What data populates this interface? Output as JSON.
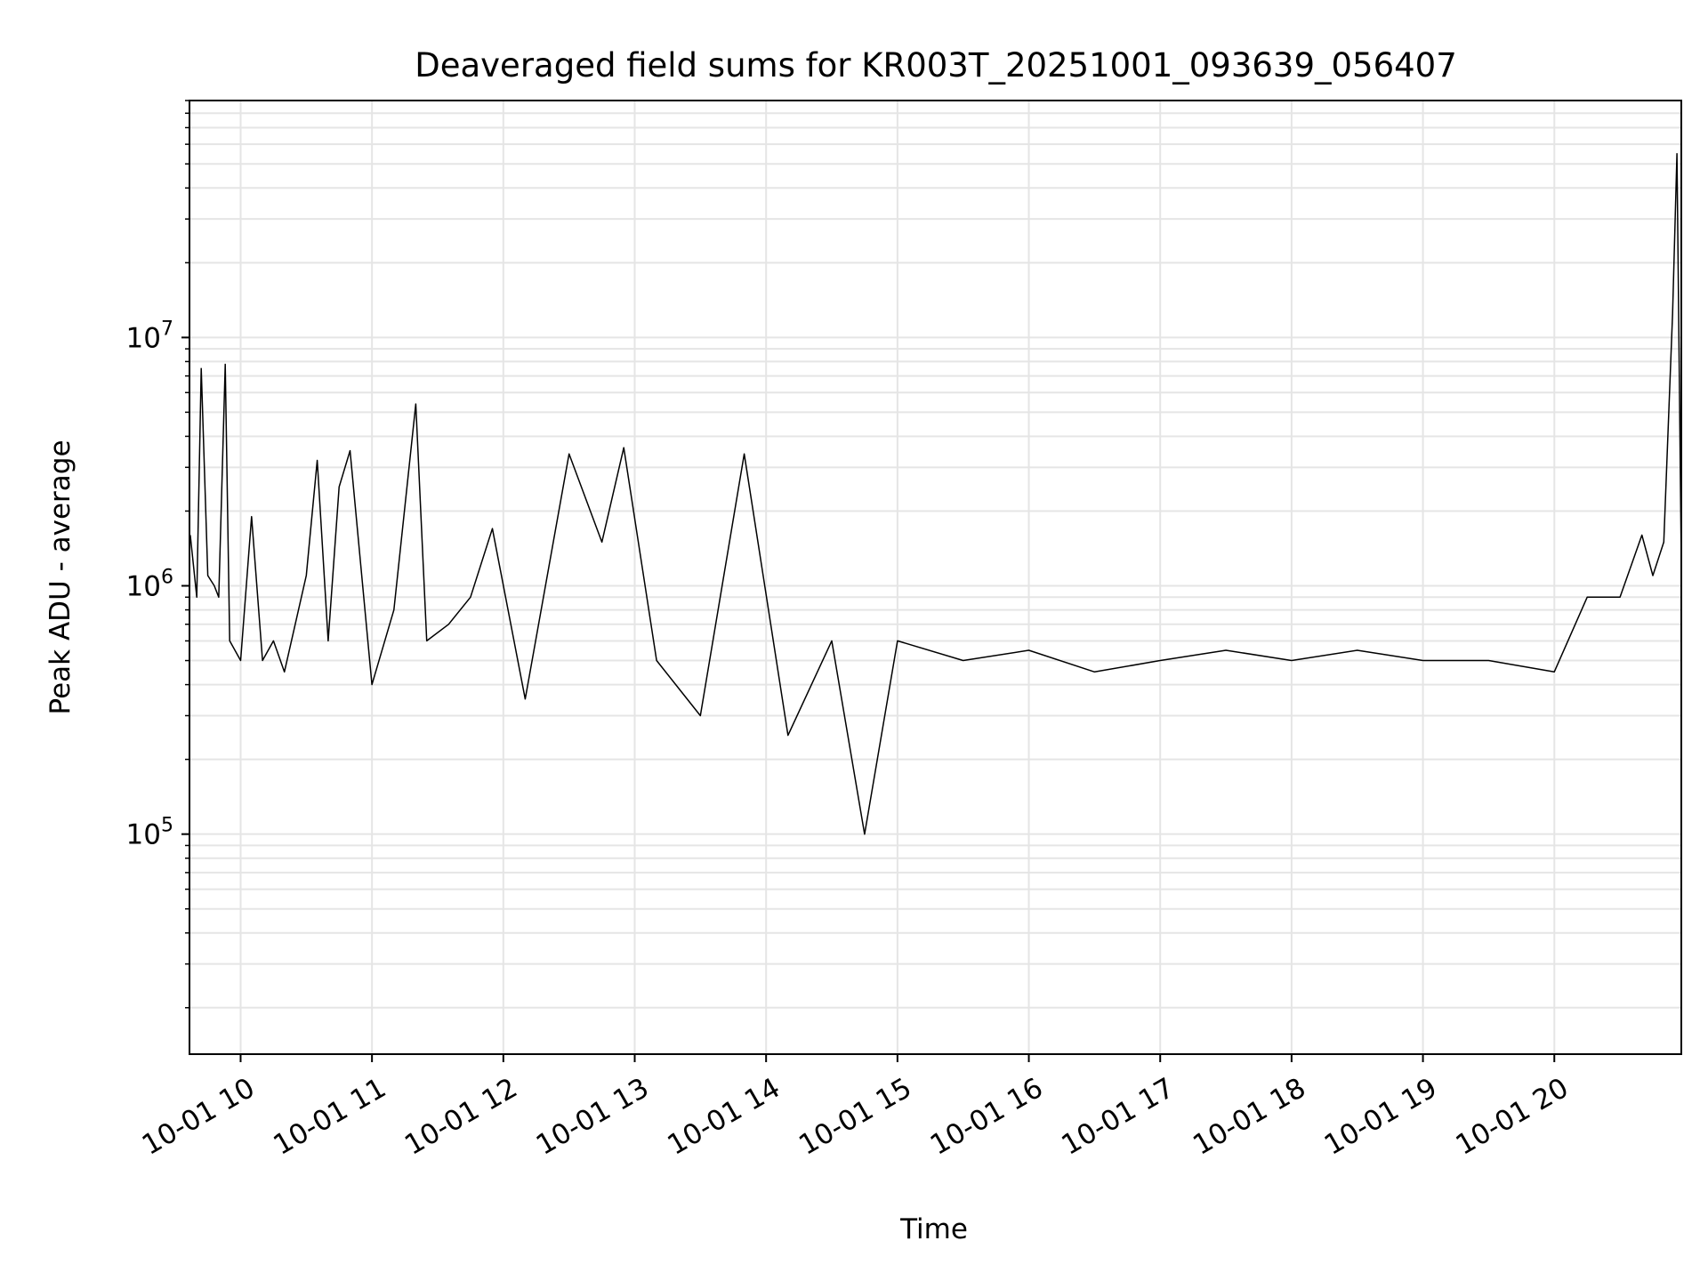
{
  "chart_data": {
    "type": "line",
    "title": "Deaveraged field sums for KR003T_20251001_093639_056407",
    "xlabel": "Time",
    "ylabel": "Peak ADU - average",
    "yscale": "log",
    "ylim": [
      13000,
      90000000
    ],
    "xlim": [
      "2025-10-01T09:36:39",
      "2025-10-01T20:58:00"
    ],
    "grid": true,
    "line_color": "#000000",
    "x_ticks": [
      {
        "time": "2025-10-01T10:00:00",
        "label": "10-01 10"
      },
      {
        "time": "2025-10-01T11:00:00",
        "label": "10-01 11"
      },
      {
        "time": "2025-10-01T12:00:00",
        "label": "10-01 12"
      },
      {
        "time": "2025-10-01T13:00:00",
        "label": "10-01 13"
      },
      {
        "time": "2025-10-01T14:00:00",
        "label": "10-01 14"
      },
      {
        "time": "2025-10-01T15:00:00",
        "label": "10-01 15"
      },
      {
        "time": "2025-10-01T16:00:00",
        "label": "10-01 16"
      },
      {
        "time": "2025-10-01T17:00:00",
        "label": "10-01 17"
      },
      {
        "time": "2025-10-01T18:00:00",
        "label": "10-01 18"
      },
      {
        "time": "2025-10-01T19:00:00",
        "label": "10-01 19"
      },
      {
        "time": "2025-10-01T20:00:00",
        "label": "10-01 20"
      }
    ],
    "y_ticks": [
      {
        "value": 100000,
        "base": "10",
        "exp": "5"
      },
      {
        "value": 1000000,
        "base": "10",
        "exp": "6"
      },
      {
        "value": 10000000,
        "base": "10",
        "exp": "7"
      }
    ],
    "series": [
      {
        "x": [
          "2025-10-01T09:37:00",
          "2025-10-01T09:40:00",
          "2025-10-01T09:42:00",
          "2025-10-01T09:45:00",
          "2025-10-01T09:48:00",
          "2025-10-01T09:50:00",
          "2025-10-01T09:53:00",
          "2025-10-01T09:55:00",
          "2025-10-01T10:00:00",
          "2025-10-01T10:05:00",
          "2025-10-01T10:10:00",
          "2025-10-01T10:15:00",
          "2025-10-01T10:20:00",
          "2025-10-01T10:30:00",
          "2025-10-01T10:35:00",
          "2025-10-01T10:40:00",
          "2025-10-01T10:45:00",
          "2025-10-01T10:50:00",
          "2025-10-01T11:00:00",
          "2025-10-01T11:10:00",
          "2025-10-01T11:20:00",
          "2025-10-01T11:25:00",
          "2025-10-01T11:35:00",
          "2025-10-01T11:45:00",
          "2025-10-01T11:55:00",
          "2025-10-01T12:10:00",
          "2025-10-01T12:30:00",
          "2025-10-01T12:45:00",
          "2025-10-01T12:55:00",
          "2025-10-01T13:10:00",
          "2025-10-01T13:30:00",
          "2025-10-01T13:50:00",
          "2025-10-01T14:10:00",
          "2025-10-01T14:30:00",
          "2025-10-01T14:45:00",
          "2025-10-01T15:00:00",
          "2025-10-01T15:30:00",
          "2025-10-01T16:00:00",
          "2025-10-01T16:30:00",
          "2025-10-01T17:00:00",
          "2025-10-01T17:30:00",
          "2025-10-01T18:00:00",
          "2025-10-01T18:30:00",
          "2025-10-01T19:00:00",
          "2025-10-01T19:30:00",
          "2025-10-01T20:00:00",
          "2025-10-01T20:15:00",
          "2025-10-01T20:30:00",
          "2025-10-01T20:40:00",
          "2025-10-01T20:45:00",
          "2025-10-01T20:50:00",
          "2025-10-01T20:54:00",
          "2025-10-01T20:56:00",
          "2025-10-01T20:58:00"
        ],
        "y": [
          1600000,
          900000,
          7500000,
          1100000,
          1000000,
          900000,
          7800000,
          600000,
          500000,
          1900000,
          500000,
          600000,
          450000,
          1100000,
          3200000,
          600000,
          2500000,
          3500000,
          400000,
          800000,
          5400000,
          600000,
          700000,
          900000,
          1700000,
          350000,
          3400000,
          1500000,
          3600000,
          500000,
          300000,
          3400000,
          250000,
          600000,
          100000,
          600000,
          500000,
          550000,
          450000,
          500000,
          550000,
          500000,
          550000,
          500000,
          500000,
          450000,
          900000,
          900000,
          1600000,
          1100000,
          1500000,
          12500000,
          55000000,
          1200000
        ]
      }
    ]
  }
}
